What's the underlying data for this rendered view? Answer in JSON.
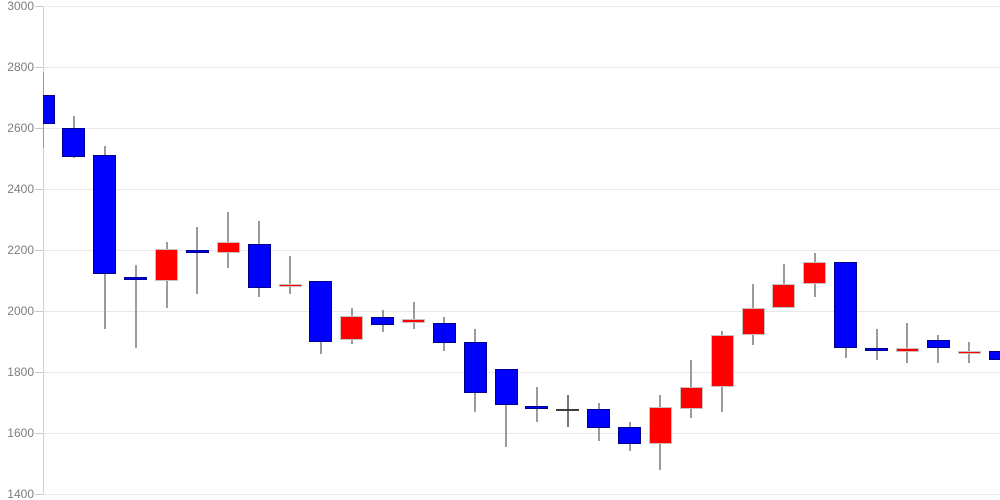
{
  "chart_data": {
    "type": "candlestick",
    "title": "",
    "xlabel": "",
    "ylabel": "",
    "x_axis": {
      "labels_visible": false,
      "candle_count": 32
    },
    "y_axis": {
      "ticks": [
        3000,
        2800,
        2600,
        2400,
        2200,
        2000,
        1800,
        1600,
        1400
      ],
      "visible_min": 1400,
      "visible_max": 3000
    },
    "grid": "horizontal-only",
    "legend": "none",
    "convention": "red body = close above open (up), blue body = close below open (down), gray cross = doji (open equals close)",
    "candles": [
      {
        "open": 2710,
        "high": 2785,
        "low": 2535,
        "close": 2615
      },
      {
        "open": 2600,
        "high": 2640,
        "low": 2500,
        "close": 2505
      },
      {
        "open": 2510,
        "high": 2540,
        "low": 1940,
        "close": 2120
      },
      {
        "open": 2110,
        "high": 2150,
        "low": 1880,
        "close": 2100
      },
      {
        "open": 2100,
        "high": 2225,
        "low": 2010,
        "close": 2205
      },
      {
        "open": 2200,
        "high": 2275,
        "low": 2055,
        "close": 2190
      },
      {
        "open": 2190,
        "high": 2325,
        "low": 2140,
        "close": 2225
      },
      {
        "open": 2220,
        "high": 2295,
        "low": 2045,
        "close": 2075
      },
      {
        "open": 2080,
        "high": 2180,
        "low": 2055,
        "close": 2090
      },
      {
        "open": 2100,
        "high": 2100,
        "low": 1860,
        "close": 1900
      },
      {
        "open": 1905,
        "high": 2010,
        "low": 1890,
        "close": 1985
      },
      {
        "open": 1980,
        "high": 2005,
        "low": 1930,
        "close": 1955
      },
      {
        "open": 1960,
        "high": 2030,
        "low": 1940,
        "close": 1975
      },
      {
        "open": 1960,
        "high": 1980,
        "low": 1870,
        "close": 1895
      },
      {
        "open": 1900,
        "high": 1940,
        "low": 1670,
        "close": 1730
      },
      {
        "open": 1810,
        "high": 1810,
        "low": 1555,
        "close": 1690
      },
      {
        "open": 1690,
        "high": 1750,
        "low": 1635,
        "close": 1680
      },
      {
        "open": 1680,
        "high": 1725,
        "low": 1620,
        "close": 1680
      },
      {
        "open": 1680,
        "high": 1700,
        "low": 1575,
        "close": 1615
      },
      {
        "open": 1620,
        "high": 1635,
        "low": 1540,
        "close": 1565
      },
      {
        "open": 1565,
        "high": 1725,
        "low": 1480,
        "close": 1685
      },
      {
        "open": 1680,
        "high": 1840,
        "low": 1650,
        "close": 1750
      },
      {
        "open": 1750,
        "high": 1935,
        "low": 1670,
        "close": 1920
      },
      {
        "open": 1920,
        "high": 2090,
        "low": 1890,
        "close": 2010
      },
      {
        "open": 2010,
        "high": 2155,
        "low": 2010,
        "close": 2090
      },
      {
        "open": 2090,
        "high": 2190,
        "low": 2045,
        "close": 2160
      },
      {
        "open": 2160,
        "high": 2160,
        "low": 1845,
        "close": 1880
      },
      {
        "open": 1880,
        "high": 1940,
        "low": 1840,
        "close": 1870
      },
      {
        "open": 1865,
        "high": 1960,
        "low": 1830,
        "close": 1880
      },
      {
        "open": 1905,
        "high": 1920,
        "low": 1830,
        "close": 1880
      },
      {
        "open": 1860,
        "high": 1900,
        "low": 1830,
        "close": 1870
      },
      {
        "open": 1870,
        "high": 1870,
        "low": 1840,
        "close": 1840
      }
    ],
    "colors": {
      "up_body": "#ff0000",
      "down_body": "#0000ff",
      "doji_body": "#3d3d3d",
      "wick": "#9b9b9b",
      "gridline": "#e8e8e8",
      "axis_line": "#cfcfcf",
      "label_text": "#7d7d7d",
      "background": "#ffffff"
    }
  }
}
